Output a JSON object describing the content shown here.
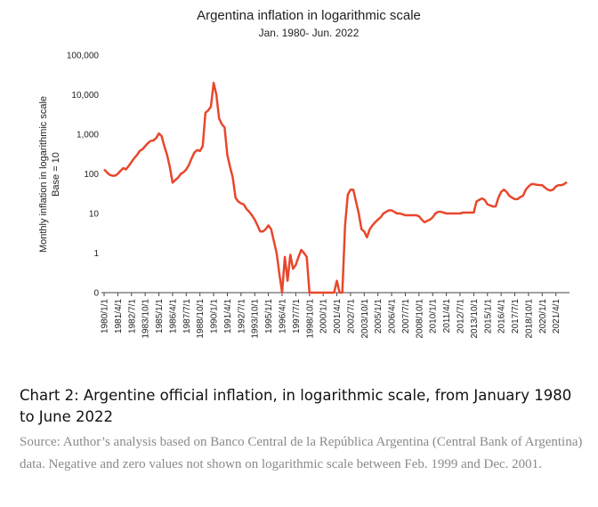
{
  "chart_data": {
    "type": "line",
    "title": "Argentina inflation in logarithmic scale",
    "subtitle": "Jan. 1980- Jun. 2022",
    "ylabel": [
      "Monthly inflation in logarithmic scale",
      "Base = 10"
    ],
    "log_y": true,
    "grid": false,
    "ylim": [
      0.1,
      100000
    ],
    "yticks": [
      {
        "value": 0.1,
        "label": "0"
      },
      1,
      10,
      100,
      {
        "value": 1000,
        "label": "1,000"
      },
      {
        "value": 10000,
        "label": "10,000"
      },
      {
        "value": 100000,
        "label": "100,000"
      }
    ],
    "categories": [
      "1980/1/1",
      null,
      null,
      null,
      null,
      "1981/4/1",
      null,
      null,
      null,
      null,
      "1982/7/1",
      null,
      null,
      null,
      null,
      "1983/10/1",
      null,
      null,
      null,
      null,
      "1985/1/1",
      null,
      null,
      null,
      null,
      "1986/4/1",
      null,
      null,
      null,
      null,
      "1987/7/1",
      null,
      null,
      null,
      null,
      "1988/10/1",
      null,
      null,
      null,
      null,
      "1990/1/1",
      null,
      null,
      null,
      null,
      "1991/4/1",
      null,
      null,
      null,
      null,
      "1992/7/1",
      null,
      null,
      null,
      null,
      "1993/10/1",
      null,
      null,
      null,
      null,
      "1995/1/1",
      null,
      null,
      null,
      null,
      "1996/4/1",
      null,
      null,
      null,
      null,
      "1997/7/1",
      null,
      null,
      null,
      null,
      "1998/10/1",
      null,
      null,
      null,
      null,
      "2000/1/1",
      null,
      null,
      null,
      null,
      "2001/4/1",
      null,
      null,
      null,
      null,
      "2002/7/1",
      null,
      null,
      null,
      null,
      "2003/10/1",
      null,
      null,
      null,
      null,
      "2005/1/1",
      null,
      null,
      null,
      null,
      "2006/4/1",
      null,
      null,
      null,
      null,
      "2007/7/1",
      null,
      null,
      null,
      null,
      "2008/10/1",
      null,
      null,
      null,
      null,
      "2010/1/1",
      null,
      null,
      null,
      null,
      "2011/4/1",
      null,
      null,
      null,
      null,
      "2012/7/1",
      null,
      null,
      null,
      null,
      "2013/10/1",
      null,
      null,
      null,
      null,
      "2015/1/1",
      null,
      null,
      null,
      null,
      "2016/4/1",
      null,
      null,
      null,
      null,
      "2017/7/1",
      null,
      null,
      null,
      null,
      "2018/10/1",
      null,
      null,
      null,
      null,
      "2020/1/1",
      null,
      null,
      null,
      null,
      "2021/4/1",
      null,
      null,
      null,
      null
    ],
    "series": [
      {
        "name": "Inflation",
        "color": "#e8472c",
        "values": [
          130,
          110,
          95,
          90,
          90,
          100,
          120,
          140,
          130,
          160,
          200,
          250,
          300,
          380,
          420,
          500,
          600,
          680,
          700,
          800,
          1050,
          900,
          500,
          300,
          150,
          60,
          70,
          80,
          100,
          110,
          130,
          170,
          250,
          350,
          400,
          380,
          500,
          3500,
          4000,
          5000,
          20000,
          10000,
          2500,
          1800,
          1500,
          300,
          150,
          80,
          25,
          20,
          18,
          17,
          13,
          11,
          9,
          7,
          5,
          3.5,
          3.5,
          4,
          5,
          4,
          2,
          1,
          0.3,
          0.1,
          0.8,
          0.2,
          0.9,
          0.4,
          0.5,
          0.8,
          1.2,
          1,
          0.8,
          0.1,
          0.1,
          0.1,
          0.1,
          0.1,
          0.1,
          0.1,
          0.1,
          0.1,
          0.1,
          0.2,
          0.1,
          0.1,
          5,
          30,
          40,
          40,
          20,
          10,
          4,
          3.5,
          2.5,
          4,
          5,
          6,
          7,
          8,
          10,
          11,
          12,
          12,
          11,
          10,
          10,
          9.5,
          9,
          9,
          9,
          9,
          9,
          8.5,
          7,
          6,
          6.5,
          7,
          8,
          10,
          11,
          11,
          10.5,
          10,
          10,
          10,
          10,
          10,
          10,
          10.5,
          10.5,
          10.5,
          10.5,
          10.5,
          20,
          22,
          24,
          22,
          17,
          16,
          15,
          15,
          25,
          35,
          40,
          35,
          28,
          25,
          23,
          23,
          26,
          28,
          40,
          48,
          55,
          55,
          53,
          52,
          52,
          45,
          40,
          38,
          40,
          48,
          52,
          52,
          55,
          62
        ]
      }
    ]
  },
  "caption": "Chart 2: Argentine official inflation, in logarithmic scale, from January 1980 to June 2022",
  "source": "Source: Author’s analysis based on Banco Central de la República Argentina (Central Bank of Argentina) data. Negative and zero values not shown on logarithmic scale between Feb. 1999 and Dec. 2001."
}
